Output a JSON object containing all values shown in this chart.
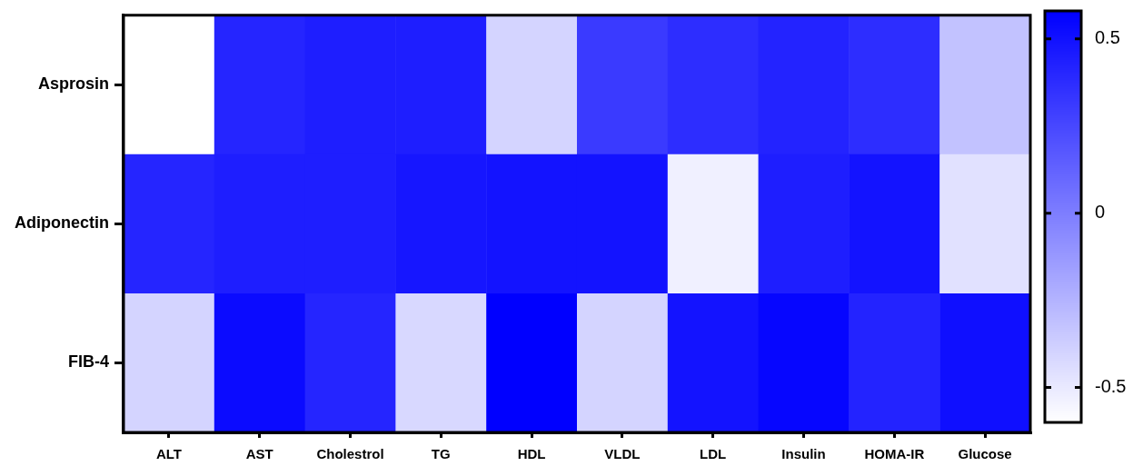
{
  "chart_data": {
    "type": "heatmap",
    "categories": [
      "ALT",
      "AST",
      "Cholestrol",
      "TG",
      "HDL",
      "VLDL",
      "LDL",
      "Insulin",
      "HOMA-IR",
      "Glucose"
    ],
    "y_categories": [
      "Asprosin",
      "Adiponectin",
      "FIB-4"
    ],
    "cells": [
      [
        -0.6,
        0.41,
        0.44,
        0.44,
        -0.4,
        0.31,
        0.37,
        0.42,
        0.37,
        -0.32
      ],
      [
        0.41,
        0.44,
        0.44,
        0.48,
        0.49,
        0.49,
        -0.53,
        0.44,
        0.49,
        -0.46
      ],
      [
        -0.4,
        0.53,
        0.41,
        -0.42,
        0.58,
        -0.4,
        0.49,
        0.55,
        0.42,
        0.51
      ]
    ],
    "clim": [
      -0.6,
      0.58
    ],
    "cticks": [
      -0.5,
      0,
      0.5
    ]
  }
}
